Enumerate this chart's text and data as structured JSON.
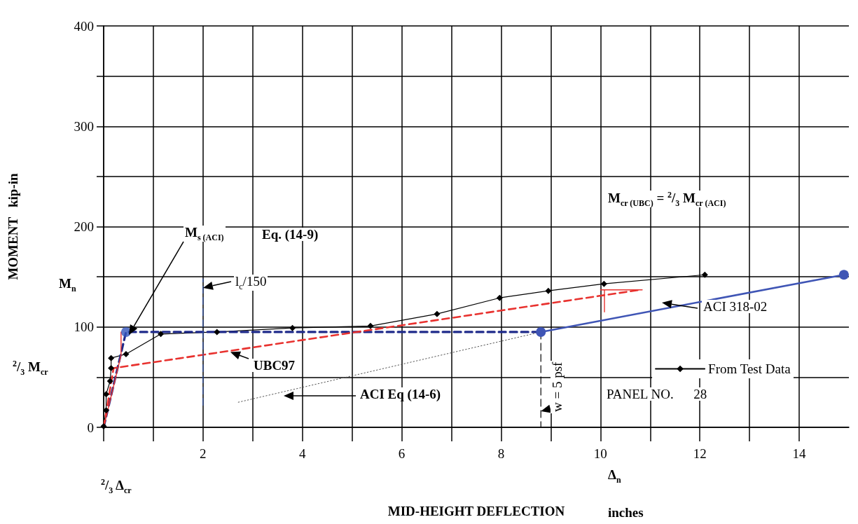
{
  "chart_data": {
    "type": "line",
    "xlabel": "MID-HEIGHT DEFLECTION",
    "ylabel": "MOMENT   kip-in",
    "xlim": [
      0,
      15
    ],
    "xticks": [
      {
        "value": 0,
        "label": null
      },
      {
        "value": 1,
        "label": null
      },
      2,
      {
        "value": 3,
        "label": null
      },
      4,
      {
        "value": 5,
        "label": null
      },
      6,
      {
        "value": 7,
        "label": null
      },
      8,
      {
        "value": 9,
        "label": null
      },
      10,
      {
        "value": 11,
        "label": null
      },
      12,
      {
        "value": 13,
        "label": null
      },
      14
    ],
    "ylim": [
      0,
      400
    ],
    "yticks": [
      0,
      {
        "value": 50,
        "label": null
      },
      100,
      {
        "value": 150,
        "label": null
      },
      200,
      {
        "value": 250,
        "label": null
      },
      300,
      {
        "value": 350,
        "label": null
      },
      400
    ],
    "grid": true,
    "legend": "bottom right",
    "series": [
      {
        "name": "From Test Data",
        "color": "#000000",
        "marker": "diamond",
        "line_style": "solid",
        "x": [
          0,
          0.05,
          0.05,
          0.13,
          0.15,
          0.15,
          0.45,
          1.15,
          2.28,
          3.8,
          5.37,
          6.71,
          7.97,
          8.95,
          10.07,
          12.1
        ],
        "values": [
          1,
          17,
          33,
          46,
          59,
          69,
          73,
          93,
          95,
          99,
          101,
          113,
          129,
          136,
          143,
          152
        ]
      },
      {
        "color": "#1f2a8a",
        "marker": "none",
        "line_style": "dashed",
        "x": [
          0,
          0.45,
          8.8
        ],
        "values": [
          0,
          95,
          95
        ]
      },
      {
        "type": "scatter",
        "color": "#3355bb",
        "marker": "circle",
        "x": [
          0.45
        ],
        "values": [
          95
        ]
      },
      {
        "color": "#3f55b5",
        "marker": "circle",
        "line_style": "solid",
        "x": [
          8.8,
          14.9
        ],
        "values": [
          95,
          152
        ]
      },
      {
        "color": "#e8322f",
        "marker": "none",
        "line_style": "dashed",
        "x": [
          0,
          0.2,
          10.8
        ],
        "values": [
          0,
          59,
          137
        ]
      },
      {
        "color": "#e8322f",
        "marker": "none",
        "line_style": "solid",
        "x": [
          0,
          0.35,
          0.35
        ],
        "values": [
          0,
          72,
          95
        ]
      },
      {
        "color": "#555555",
        "marker": "none",
        "line_style": "dotted",
        "x": [
          2.71,
          8.8
        ],
        "values": [
          25,
          95
        ]
      },
      {
        "color": "#3355aa",
        "marker": "none",
        "line_style": "dashed",
        "x": [
          2,
          2
        ],
        "values": [
          22,
          148
        ]
      },
      {
        "color": "#000000",
        "marker": "none",
        "line_style": "dashed",
        "x": [
          8.8,
          8.8
        ],
        "values": [
          95,
          0
        ]
      },
      {
        "color": "#e8322f",
        "marker": "none",
        "line_style": "solid",
        "x": [
          10,
          10.84
        ],
        "values": [
          137,
          137
        ]
      },
      {
        "color": "#e8322f",
        "marker": "none",
        "line_style": "solid",
        "x": [
          10.08,
          10.08
        ],
        "values": [
          137,
          115
        ]
      }
    ],
    "annotations": [
      "M$_{s (ACI)}$",
      "Eq. (14-9)",
      {
        "text": "l$_{c}$/150",
        "x": 2,
        "y": 139
      },
      {
        "text": "UBC97",
        "x": 2.55,
        "y": 75
      },
      "ACI Eq (14-6)",
      "ACI 318-02",
      {
        "text": "w = 5 psf",
        "x": 8.8,
        "y": 16
      },
      "M$_{cr (UBC)}$ = $^{2}$/$_{3}$ M$_{cr (ACI)}$",
      "PANEL NO.      28",
      "M$_{n}$",
      "$^{2}$/$_{3}$ M$_{cr}$",
      "$^{2}$/$_{3}$ Δ$_{cr}$",
      "Δ$_{n}$",
      "inches"
    ]
  }
}
